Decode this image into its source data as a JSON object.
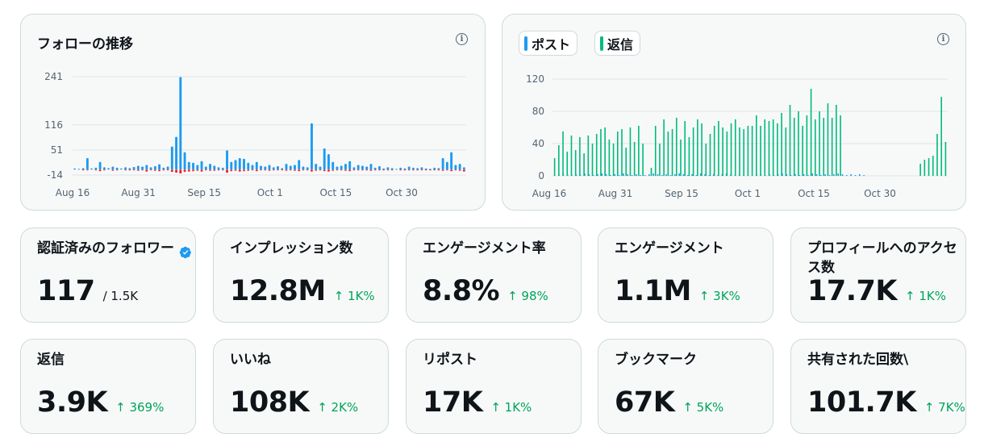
{
  "follow_chart": {
    "title": "フォローの推移",
    "info_icon": "info-icon",
    "colors": {
      "gain": "#1d9bf0",
      "loss": "#f4212e",
      "grid": "#dfe4e8"
    },
    "chart_data": {
      "type": "bar",
      "ylim": [
        -14,
        241
      ],
      "y_ticks": [
        "241",
        "116",
        "51",
        "-14"
      ],
      "x_ticks": [
        "Aug 16",
        "Aug 31",
        "Sep 15",
        "Oct 1",
        "Oct 15",
        "Oct 30"
      ],
      "series": [
        {
          "values": [
            3,
            2,
            4,
            30,
            3,
            5,
            20,
            6,
            4,
            8,
            5,
            3,
            6,
            4,
            7,
            10,
            8,
            12,
            6,
            9,
            14,
            5,
            8,
            60,
            85,
            240,
            45,
            20,
            18,
            12,
            22,
            8,
            15,
            10,
            6,
            5,
            50,
            20,
            25,
            30,
            28,
            18,
            12,
            20,
            10,
            8,
            12,
            6,
            9,
            4,
            15,
            10,
            12,
            25,
            8,
            6,
            120,
            15,
            8,
            55,
            40,
            20,
            8,
            10,
            15,
            22,
            6,
            12,
            10,
            8,
            15,
            5,
            9,
            3,
            6,
            4,
            2,
            5,
            3,
            8,
            5,
            4,
            6,
            3,
            2,
            5,
            4,
            30,
            20,
            45,
            12,
            15,
            6
          ]
        },
        {
          "values": [
            0,
            0,
            -1,
            -2,
            0,
            -2,
            -4,
            -1,
            0,
            -3,
            -1,
            0,
            -2,
            -1,
            -2,
            -3,
            -2,
            -5,
            -1,
            -3,
            -4,
            -1,
            -2,
            -6,
            -8,
            -10,
            -6,
            -5,
            -4,
            -3,
            -5,
            -2,
            -3,
            -3,
            -2,
            -1,
            -8,
            -4,
            -3,
            -5,
            -4,
            -3,
            -2,
            -4,
            -2,
            -2,
            -3,
            -1,
            -2,
            -1,
            -3,
            -2,
            -3,
            -4,
            -2,
            -1,
            -5,
            -3,
            -2,
            -4,
            -5,
            -3,
            -2,
            -2,
            -3,
            -4,
            -1,
            -2,
            -2,
            -2,
            -3,
            -1,
            -2,
            -1,
            -1,
            -1,
            0,
            -1,
            -1,
            -2,
            -1,
            -1,
            -2,
            -1,
            -1,
            -1,
            -1,
            -3,
            -2,
            -4,
            -2,
            -3,
            -5
          ]
        }
      ]
    }
  },
  "posts_chart": {
    "info_icon": "info-icon",
    "legend": [
      {
        "label": "ポスト",
        "color": "#1d9bf0"
      },
      {
        "label": "返信",
        "color": "#00ba7c"
      }
    ],
    "colors": {
      "grid": "#dfe4e8"
    },
    "chart_data": {
      "type": "bar",
      "ylim": [
        0,
        120
      ],
      "y_ticks": [
        "120",
        "80",
        "40",
        "0"
      ],
      "x_ticks": [
        "Aug 16",
        "Aug 31",
        "Sep 15",
        "Oct 1",
        "Oct 15",
        "Oct 30"
      ],
      "series": [
        {
          "values": [
            1,
            2,
            3,
            2,
            1,
            2,
            1,
            3,
            2,
            1,
            2,
            3,
            2,
            1,
            2,
            1,
            3,
            2,
            1,
            2,
            1,
            1,
            2,
            3,
            2,
            1,
            2,
            1,
            2,
            3,
            2,
            1,
            2,
            1,
            3,
            2,
            1,
            2,
            1,
            2,
            3,
            2,
            1,
            2,
            1,
            2,
            1,
            3,
            2,
            1,
            2,
            1,
            2,
            3,
            2,
            1,
            2,
            1,
            2,
            1,
            3,
            2,
            1,
            2,
            1,
            2,
            3,
            2,
            1,
            2,
            1,
            2,
            1,
            0,
            0,
            0,
            0,
            0,
            0,
            0,
            0,
            0,
            0,
            0,
            0,
            0,
            0,
            0,
            0,
            0,
            0,
            0
          ]
        },
        {
          "values": [
            22,
            38,
            55,
            30,
            50,
            32,
            48,
            28,
            50,
            40,
            52,
            58,
            60,
            45,
            40,
            55,
            58,
            35,
            60,
            42,
            62,
            40,
            0,
            10,
            62,
            40,
            70,
            55,
            58,
            72,
            45,
            68,
            48,
            60,
            70,
            65,
            40,
            52,
            62,
            68,
            60,
            55,
            65,
            70,
            60,
            58,
            62,
            62,
            75,
            62,
            70,
            68,
            70,
            65,
            78,
            60,
            88,
            72,
            80,
            62,
            75,
            108,
            70,
            80,
            72,
            90,
            72,
            88,
            75,
            0,
            0,
            0,
            0,
            0,
            0,
            0,
            0,
            0,
            0,
            0,
            0,
            0,
            0,
            0,
            0,
            0,
            0,
            15,
            20,
            22,
            25,
            52,
            98,
            42
          ]
        }
      ]
    }
  },
  "metrics": [
    {
      "label": "認証済みのフォロワー",
      "value": "117",
      "sub": "/ 1.5K",
      "verified_icon": "verified-badge-icon"
    },
    {
      "label": "インプレッション数",
      "value": "12.8M",
      "change": "↑ 1K%"
    },
    {
      "label": "エンゲージメント率",
      "value": "8.8%",
      "change": "↑ 98%"
    },
    {
      "label": "エンゲージメント",
      "value": "1.1M",
      "change": "↑ 3K%"
    },
    {
      "label": "プロフィールへのアクセス数",
      "value": "17.7K",
      "change": "↑ 1K%"
    },
    {
      "label": "返信",
      "value": "3.9K",
      "change": "↑ 369%"
    },
    {
      "label": "いいね",
      "value": "108K",
      "change": "↑ 2K%"
    },
    {
      "label": "リポスト",
      "value": "17K",
      "change": "↑ 1K%"
    },
    {
      "label": "ブックマーク",
      "value": "67K",
      "change": "↑ 5K%"
    },
    {
      "label": "共有された回数\\",
      "value": "101.7K",
      "change": "↑ 7K%"
    }
  ]
}
